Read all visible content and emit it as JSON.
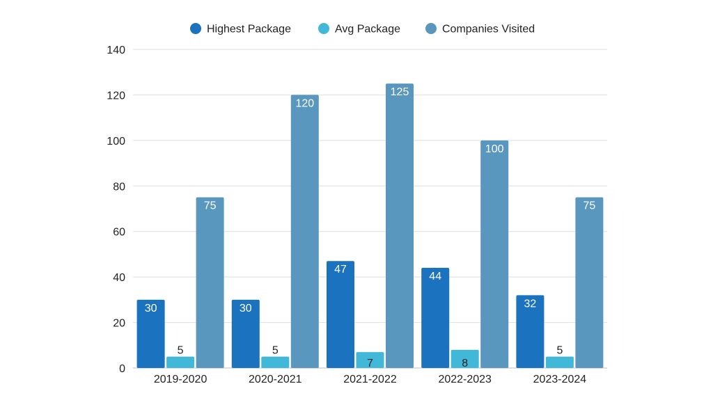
{
  "chart_data": {
    "type": "bar",
    "title": "",
    "xlabel": "",
    "ylabel": "",
    "categories": [
      "2019-2020",
      "2020-2021",
      "2021-2022",
      "2022-2023",
      "2023-2024"
    ],
    "series": [
      {
        "name": "Highest Package",
        "color": "#1b72bf",
        "values": [
          30,
          30,
          47,
          44,
          32
        ],
        "label_color": "#ffffff",
        "label_position": "inside-top"
      },
      {
        "name": "Avg Package",
        "color": "#42b8d9",
        "values": [
          5,
          5,
          7,
          8,
          5
        ],
        "label_color": "#222222",
        "label_position": "auto"
      },
      {
        "name": "Companies Visited",
        "color": "#5a97bf",
        "values": [
          75,
          120,
          125,
          100,
          75
        ],
        "label_color": "#ffffff",
        "label_position": "inside-top"
      }
    ],
    "ylim": [
      0,
      140
    ],
    "yticks": [
      0,
      20,
      40,
      60,
      80,
      100,
      120,
      140
    ],
    "grid": true,
    "legend": "top-center"
  }
}
